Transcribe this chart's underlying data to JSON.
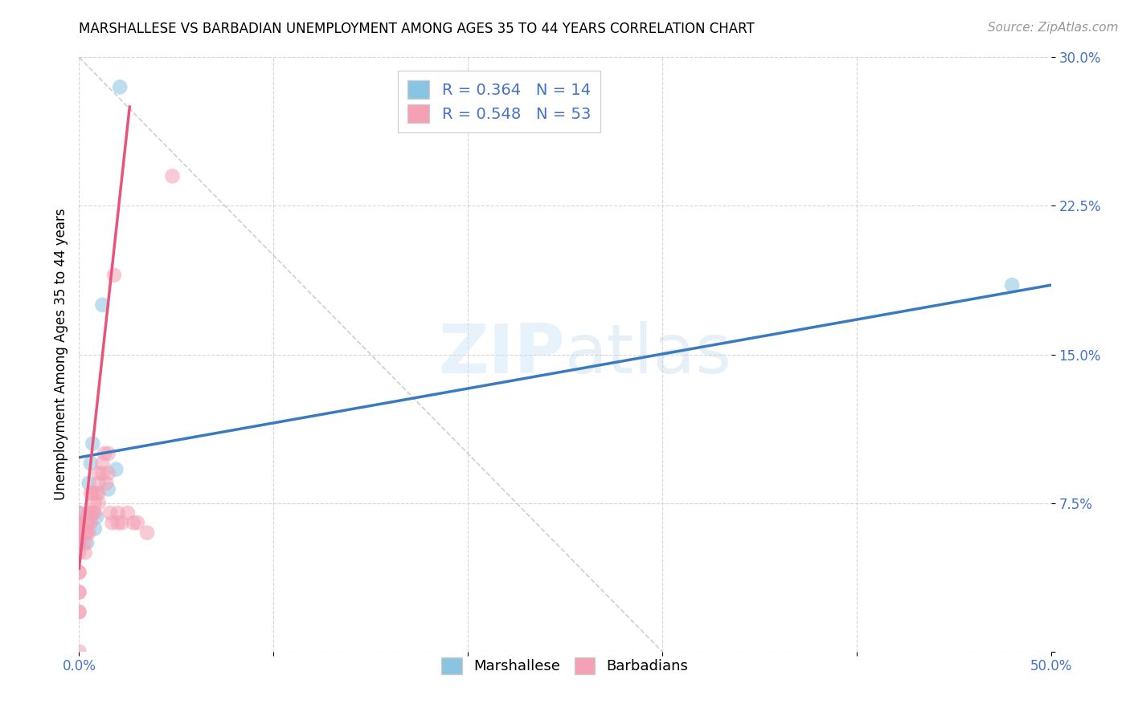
{
  "title": "MARSHALLESE VS BARBADIAN UNEMPLOYMENT AMONG AGES 35 TO 44 YEARS CORRELATION CHART",
  "source": "Source: ZipAtlas.com",
  "ylabel": "Unemployment Among Ages 35 to 44 years",
  "xlim": [
    0,
    0.5
  ],
  "ylim": [
    0,
    0.3
  ],
  "xticks": [
    0.0,
    0.1,
    0.2,
    0.3,
    0.4,
    0.5
  ],
  "xtick_labels": [
    "0.0%",
    "",
    "",
    "",
    "",
    "50.0%"
  ],
  "yticks": [
    0.0,
    0.075,
    0.15,
    0.225,
    0.3
  ],
  "ytick_labels": [
    "",
    "7.5%",
    "15.0%",
    "22.5%",
    "30.0%"
  ],
  "grid_color": "#cccccc",
  "background_color": "#ffffff",
  "watermark_text": "ZIP",
  "watermark_text2": "atlas",
  "blue_color": "#89c4e1",
  "pink_color": "#f4a0b5",
  "blue_line_color": "#3a7abf",
  "pink_line_color": "#e8547a",
  "scatter_alpha": 0.55,
  "scatter_size": 180,
  "marshallese_x": [
    0.0,
    0.0,
    0.0,
    0.004,
    0.005,
    0.006,
    0.007,
    0.008,
    0.009,
    0.012,
    0.015,
    0.019,
    0.021,
    0.48
  ],
  "marshallese_y": [
    0.055,
    0.065,
    0.07,
    0.055,
    0.085,
    0.095,
    0.105,
    0.062,
    0.068,
    0.175,
    0.082,
    0.092,
    0.285,
    0.185
  ],
  "barbadian_x": [
    0.0,
    0.0,
    0.0,
    0.0,
    0.0,
    0.0,
    0.0,
    0.0,
    0.0,
    0.0,
    0.0,
    0.0,
    0.0,
    0.0,
    0.0,
    0.0,
    0.003,
    0.003,
    0.003,
    0.004,
    0.004,
    0.005,
    0.005,
    0.005,
    0.006,
    0.006,
    0.006,
    0.007,
    0.007,
    0.008,
    0.008,
    0.009,
    0.01,
    0.01,
    0.01,
    0.01,
    0.012,
    0.012,
    0.013,
    0.014,
    0.015,
    0.015,
    0.016,
    0.017,
    0.018,
    0.02,
    0.02,
    0.022,
    0.025,
    0.028,
    0.03,
    0.035,
    0.048
  ],
  "barbadian_y": [
    0.0,
    0.02,
    0.02,
    0.03,
    0.03,
    0.04,
    0.04,
    0.05,
    0.055,
    0.055,
    0.06,
    0.06,
    0.065,
    0.065,
    0.065,
    0.07,
    0.05,
    0.055,
    0.06,
    0.06,
    0.065,
    0.06,
    0.065,
    0.07,
    0.065,
    0.07,
    0.08,
    0.07,
    0.08,
    0.07,
    0.075,
    0.08,
    0.075,
    0.08,
    0.085,
    0.09,
    0.09,
    0.095,
    0.1,
    0.085,
    0.09,
    0.1,
    0.07,
    0.065,
    0.19,
    0.065,
    0.07,
    0.065,
    0.07,
    0.065,
    0.065,
    0.06,
    0.24
  ],
  "blue_trend_x0": 0.0,
  "blue_trend_x1": 0.5,
  "blue_trend_y0": 0.098,
  "blue_trend_y1": 0.185,
  "pink_trend_x0": 0.0,
  "pink_trend_x1": 0.026,
  "pink_trend_y0": 0.042,
  "pink_trend_y1": 0.275,
  "legend1_label": "R = 0.364   N = 14",
  "legend2_label": "R = 0.548   N = 53",
  "bottom_legend1": "Marshallese",
  "bottom_legend2": "Barbadians",
  "tick_color": "#4472c4",
  "title_fontsize": 12,
  "source_fontsize": 11,
  "tick_fontsize": 12,
  "ylabel_fontsize": 12
}
